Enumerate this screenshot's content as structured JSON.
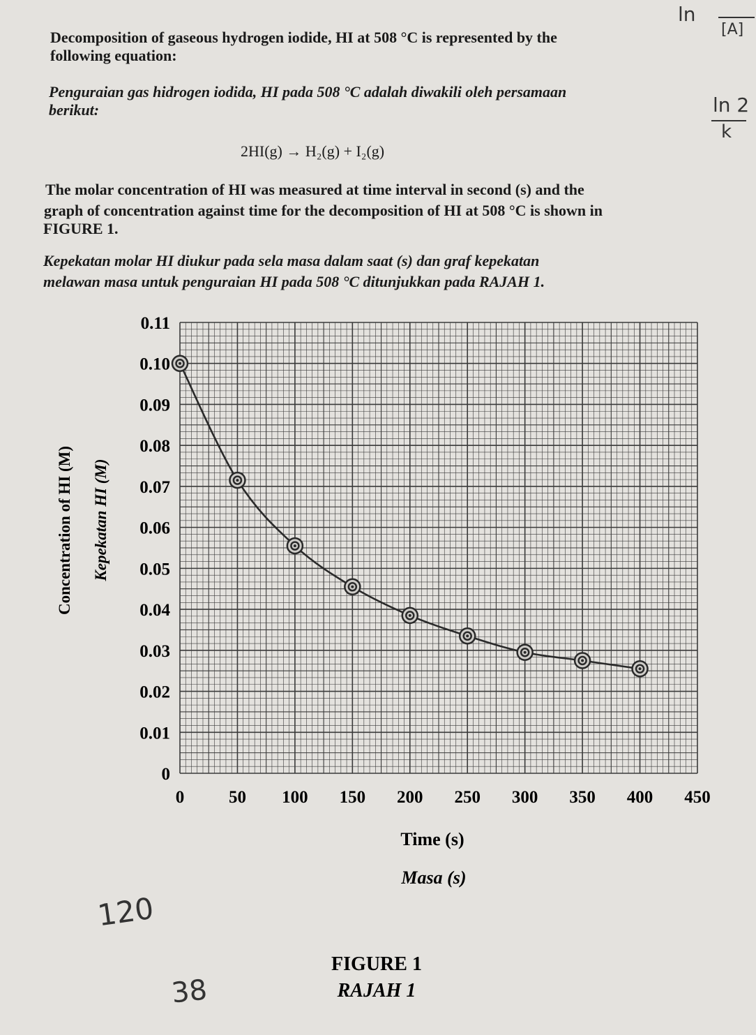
{
  "question": {
    "intro_en_1": "Decomposition of gaseous hydrogen iodide, HI at 508 °C is represented by the",
    "intro_en_2": "following equation:",
    "intro_ms_1": "Penguraian gas hidrogen iodida, HI pada 508 °C adalah diwakili oleh persamaan",
    "intro_ms_2": "berikut:",
    "equation": "2HI(g) → H₂(g) + I₂(g)",
    "desc_en_1": "The molar concentration of HI was measured at time interval in second (s) and the",
    "desc_en_2": "graph of concentration against time for the decomposition of HI at 508 °C is shown in",
    "desc_en_3": "FIGURE 1.",
    "desc_ms_1": "Kepekatan molar HI diukur pada sela masa dalam saat (s) dan graf kepekatan",
    "desc_ms_2": "melawan masa untuk penguraian HI pada 508 °C ditunjukkan pada RAJAH 1."
  },
  "handwriting": {
    "top_right_1": "ln",
    "top_right_2": "[A]",
    "top_right_3": "ln 2",
    "top_right_4": "k",
    "bottom_1": "120",
    "bottom_2": "38"
  },
  "figure": {
    "caption_en": "FIGURE 1",
    "caption_ms": "RAJAH 1"
  },
  "chart_data": {
    "type": "scatter",
    "ylabel": "Concentration of HI (M)",
    "ylabel_ms": "Kepekatan HI (M)",
    "xlabel": "Time (s)",
    "xlabel_ms": "Masa (s)",
    "xlim": [
      0,
      450
    ],
    "ylim": [
      0,
      0.11
    ],
    "xticks": [
      "0",
      "50",
      "100",
      "150",
      "200",
      "250",
      "300",
      "350",
      "400",
      "450"
    ],
    "yticks": [
      "0",
      "0.01",
      "0.02",
      "0.03",
      "0.04",
      "0.05",
      "0.06",
      "0.07",
      "0.08",
      "0.09",
      "0.10",
      "0.11"
    ],
    "grid": true,
    "x": [
      0,
      50,
      100,
      150,
      200,
      250,
      300,
      350,
      400
    ],
    "y": [
      0.1,
      0.0715,
      0.0555,
      0.0455,
      0.0385,
      0.0335,
      0.0295,
      0.0275,
      0.0255
    ],
    "colors": {
      "ink": "#2a2a2a",
      "grid": "#3a3a3a",
      "paper": "#e4e2de"
    }
  }
}
